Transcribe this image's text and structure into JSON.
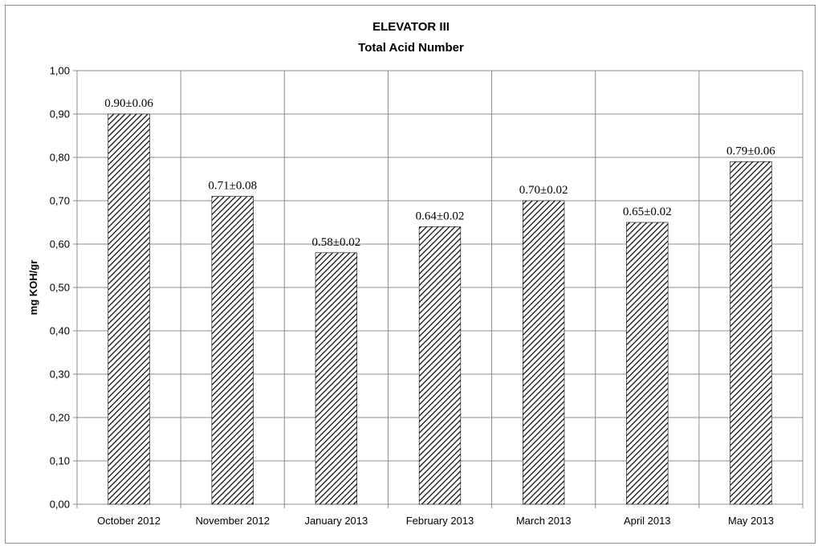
{
  "chart_data": {
    "type": "bar",
    "title": "ELEVATOR III",
    "subtitle": "Total Acid Number",
    "xlabel": "",
    "ylabel": "mg KOH/gr",
    "ylim": [
      0,
      1.0
    ],
    "yticks": [
      "0,00",
      "0,10",
      "0,20",
      "0,30",
      "0,40",
      "0,50",
      "0,60",
      "0,70",
      "0,80",
      "0,90",
      "1,00"
    ],
    "categories": [
      "October 2012",
      "November 2012",
      "January 2013",
      "February 2013",
      "March 2013",
      "April 2013",
      "May 2013"
    ],
    "values": [
      0.9,
      0.71,
      0.58,
      0.64,
      0.7,
      0.65,
      0.79
    ],
    "data_labels": [
      "0.90±0.06",
      "0.71±0.08",
      "0.58±0.02",
      "0.64±0.02",
      "0.70±0.02",
      "0.65±0.02",
      "0.79±0.06"
    ],
    "grid": true,
    "legend": "none",
    "bar_fill": "diagonal-hatch",
    "colors": {
      "bar_stroke": "#000000",
      "grid": "#8c8c8c"
    }
  }
}
